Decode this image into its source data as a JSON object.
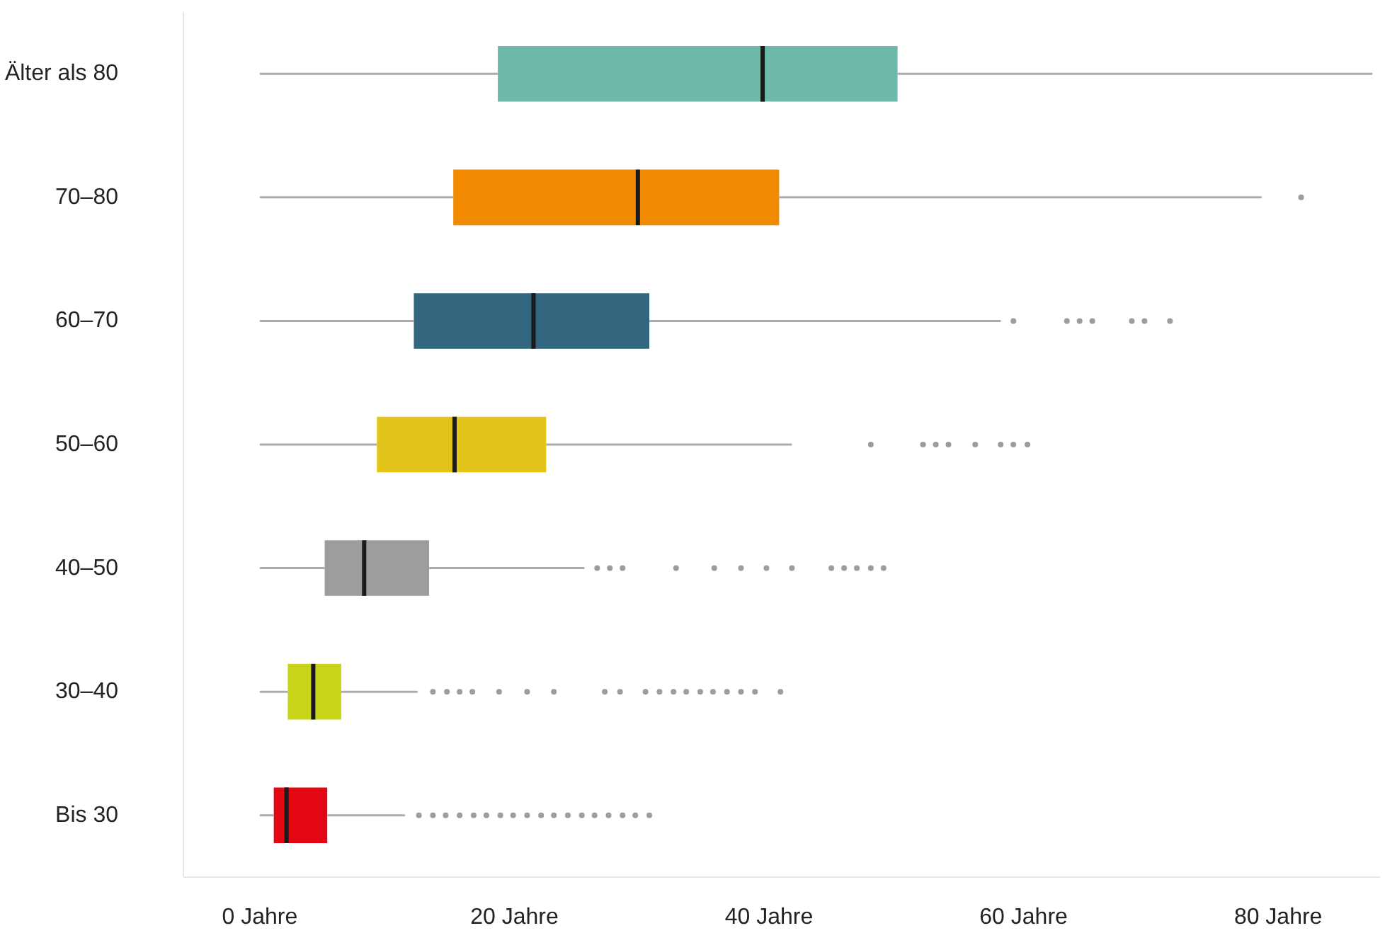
{
  "chart_data": {
    "type": "box",
    "orientation": "horizontal",
    "categories": [
      "Älter als 80",
      "70–80",
      "60–70",
      "50–60",
      "40–50",
      "30–40",
      "Bis 30"
    ],
    "colors": [
      "#6cb8a9",
      "#f18a00",
      "#32657e",
      "#e3c41b",
      "#9d9d9c",
      "#c8d41a",
      "#e30613"
    ],
    "boxes": [
      {
        "low": 0,
        "q1": 18.7,
        "median": 39.5,
        "q3": 50.1,
        "high": 87.4
      },
      {
        "low": 0,
        "q1": 15.2,
        "median": 29.7,
        "q3": 40.8,
        "high": 78.7,
        "outliers": [
          81.8
        ]
      },
      {
        "low": 0,
        "q1": 12.1,
        "median": 21.5,
        "q3": 30.6,
        "high": 58.2,
        "outliers": [
          59.2,
          63.4,
          64.4,
          65.4,
          68.5,
          69.5,
          71.5
        ]
      },
      {
        "low": 0,
        "q1": 9.2,
        "median": 15.3,
        "q3": 22.5,
        "high": 41.8,
        "outliers": [
          48.0,
          52.1,
          53.1,
          54.1,
          56.2,
          58.2,
          59.2,
          60.3
        ]
      },
      {
        "low": 0,
        "q1": 5.1,
        "median": 8.2,
        "q3": 13.3,
        "high": 25.5,
        "outliers": [
          26.5,
          27.5,
          28.5,
          32.7,
          35.7,
          37.8,
          39.8,
          41.8,
          44.9,
          45.9,
          46.9,
          48.0,
          49.0
        ]
      },
      {
        "low": 0,
        "q1": 2.2,
        "median": 4.2,
        "q3": 6.4,
        "high": 12.4,
        "outliers": [
          13.6,
          14.7,
          15.7,
          16.7,
          18.8,
          21.0,
          23.1,
          27.1,
          28.3,
          30.3,
          31.4,
          32.5,
          33.5,
          34.6,
          35.6,
          36.7,
          37.8,
          38.9,
          40.9
        ]
      },
      {
        "low": 0,
        "q1": 1.1,
        "median": 2.1,
        "q3": 5.3,
        "high": 11.4,
        "outliers": [
          12.5,
          13.6,
          14.6,
          15.7,
          16.8,
          17.8,
          18.9,
          19.9,
          21.0,
          22.1,
          23.1,
          24.2,
          25.3,
          26.3,
          27.4,
          28.5,
          29.5,
          30.6
        ]
      }
    ],
    "xlim": [
      -6,
      88
    ],
    "xticks": [
      {
        "value": 0,
        "label": "0 Jahre"
      },
      {
        "value": 20,
        "label": "20 Jahre"
      },
      {
        "value": 40,
        "label": "40 Jahre"
      },
      {
        "value": 60,
        "label": "60 Jahre"
      },
      {
        "value": 80,
        "label": "80 Jahre"
      }
    ],
    "grid": false
  }
}
